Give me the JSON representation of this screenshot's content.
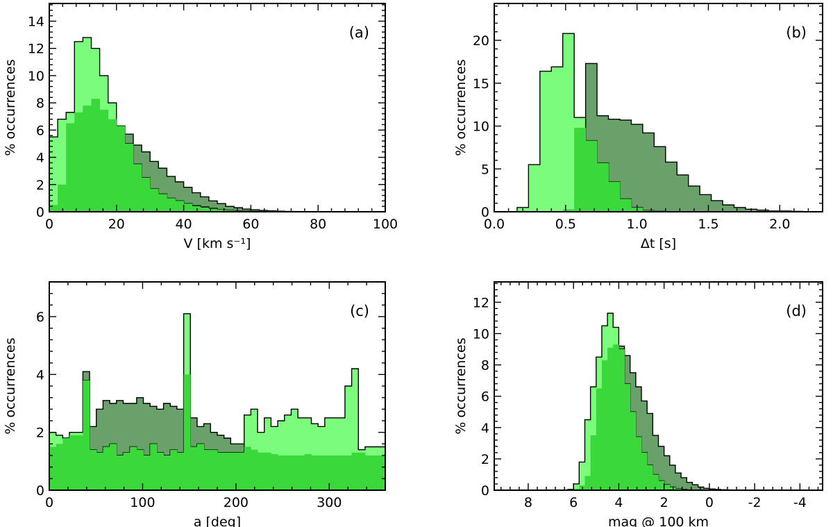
{
  "chart_data": [
    {
      "type": "histogram",
      "panel_label": "(a)",
      "xlabel": "V [km s⁻¹]",
      "ylabel": "% occurrences",
      "xlim": [
        0,
        100
      ],
      "ylim": [
        0,
        15.3
      ],
      "xticks": [
        0,
        20,
        40,
        60,
        80,
        100
      ],
      "yticks": [
        0,
        2,
        4,
        6,
        8,
        10,
        12,
        14
      ],
      "bin_start": 0,
      "bin_width": 2.5,
      "series": [
        {
          "name": "dark",
          "color": "#6aa06a",
          "values": [
            0.5,
            2,
            6.5,
            7.3,
            7.8,
            8.3,
            7.5,
            6.8,
            6.3,
            5.7,
            4.9,
            4.4,
            3.7,
            3.2,
            2.6,
            2.2,
            1.8,
            1.4,
            1.1,
            0.8,
            0.6,
            0.4,
            0.3,
            0.2,
            0.15,
            0.1,
            0.07,
            0.05,
            0.03,
            0.02,
            0.01,
            0.01,
            0,
            0,
            0,
            0,
            0,
            0,
            0,
            0
          ]
        },
        {
          "name": "light",
          "color": "#7cfc7c",
          "values": [
            5.5,
            6.8,
            7.3,
            12.5,
            12.8,
            12,
            10,
            8,
            6.3,
            5,
            3.5,
            2.5,
            1.7,
            1.3,
            1,
            0.8,
            0.6,
            0.45,
            0.35,
            0.25,
            0.15,
            0.1,
            0.07,
            0.05,
            0.03,
            0.02,
            0.01,
            0,
            0,
            0,
            0,
            0,
            0,
            0,
            0,
            0,
            0,
            0,
            0,
            0
          ]
        },
        {
          "name": "overlap",
          "color": "#3ad83a",
          "values": [
            0.5,
            2,
            6.5,
            7.3,
            7.8,
            8.3,
            7.5,
            6.8,
            6.3,
            5,
            3.5,
            2.5,
            1.7,
            1.3,
            1,
            0.8,
            0.6,
            0.4,
            0.3,
            0.2,
            0.15,
            0.1,
            0.07,
            0.05,
            0.03,
            0.02,
            0.01,
            0,
            0,
            0,
            0,
            0,
            0,
            0,
            0,
            0,
            0,
            0,
            0,
            0
          ]
        }
      ]
    },
    {
      "type": "histogram",
      "panel_label": "(b)",
      "xlabel": "Δt [s]",
      "ylabel": "% occurrences",
      "xlim": [
        0,
        2.3
      ],
      "ylim": [
        0,
        24.3
      ],
      "xticks": [
        0.0,
        0.5,
        1.0,
        1.5,
        2.0
      ],
      "xtick_labels": [
        "0.0",
        "0.5",
        "1.0",
        "1.5",
        "2.0"
      ],
      "yticks": [
        0,
        5,
        10,
        15,
        20
      ],
      "bin_start": 0,
      "bin_width": 0.08,
      "series": [
        {
          "name": "dark",
          "color": "#6aa06a",
          "values": [
            0,
            0,
            0,
            0,
            0,
            0,
            0.3,
            9.8,
            17.3,
            11.2,
            10.8,
            10.7,
            10.2,
            9.2,
            7.6,
            5.8,
            4.3,
            3,
            2,
            1.3,
            0.8,
            0.5,
            0.3,
            0.2,
            0.1,
            0.1,
            0.05,
            0,
            0
          ]
        },
        {
          "name": "light",
          "color": "#7cfc7c",
          "values": [
            0,
            0,
            0.5,
            5.5,
            16.4,
            16.9,
            20.8,
            11,
            8.3,
            5.7,
            3.5,
            1.5,
            0.5,
            0.15,
            0.05,
            0,
            0,
            0,
            0,
            0,
            0,
            0,
            0,
            0,
            0,
            0,
            0,
            0,
            0
          ]
        },
        {
          "name": "overlap",
          "color": "#3ad83a",
          "values": [
            0,
            0,
            0,
            0,
            0,
            0,
            0.3,
            9.8,
            8.3,
            5.7,
            3.5,
            1.5,
            0.5,
            0.15,
            0.05,
            0,
            0,
            0,
            0,
            0,
            0,
            0,
            0,
            0,
            0,
            0,
            0,
            0,
            0
          ]
        }
      ]
    },
    {
      "type": "histogram",
      "panel_label": "(c)",
      "xlabel": "a [deg]",
      "ylabel": "% occurrences",
      "xlim": [
        0,
        360
      ],
      "ylim": [
        0,
        7.2
      ],
      "xticks": [
        0,
        100,
        200,
        300
      ],
      "yticks": [
        0,
        2,
        4,
        6
      ],
      "bin_start": 0,
      "bin_width": 7.2,
      "series": [
        {
          "name": "dark",
          "color": "#6aa06a",
          "values": [
            1.5,
            1.6,
            1.8,
            1.9,
            1.9,
            4.1,
            2.2,
            2.8,
            3.1,
            3.0,
            3.1,
            3.0,
            3.0,
            3.2,
            3.0,
            2.9,
            2.8,
            3.0,
            2.9,
            2.8,
            4.0,
            2.5,
            2.2,
            2.3,
            2.0,
            1.9,
            1.8,
            1.6,
            1.6,
            1.5,
            1.4,
            1.3,
            1.3,
            1.25,
            1.2,
            1.2,
            1.2,
            1.2,
            1.25,
            1.2,
            1.2,
            1.2,
            1.2,
            1.2,
            1.2,
            1.3,
            1.3,
            1.2,
            1.2,
            1.2
          ]
        },
        {
          "name": "light",
          "color": "#7cfc7c",
          "values": [
            2.0,
            1.9,
            1.8,
            2.0,
            2.0,
            3.8,
            1.4,
            1.3,
            1.5,
            1.6,
            1.2,
            1.3,
            1.5,
            1.4,
            1.2,
            1.6,
            1.3,
            1.2,
            1.4,
            1.3,
            6.1,
            1.5,
            1.6,
            1.4,
            1.4,
            1.3,
            1.3,
            1.3,
            1.3,
            2.6,
            2.8,
            2.0,
            2.5,
            2.2,
            2.4,
            2.6,
            2.8,
            2.5,
            2.5,
            2.3,
            2.2,
            2.5,
            2.5,
            2.5,
            3.6,
            4.2,
            1.4,
            1.5,
            1.5,
            1.5
          ]
        },
        {
          "name": "overlap",
          "color": "#3ad83a",
          "values": [
            1.5,
            1.6,
            1.8,
            1.9,
            1.9,
            3.8,
            1.4,
            1.3,
            1.5,
            1.6,
            1.2,
            1.3,
            1.5,
            1.4,
            1.2,
            1.6,
            1.3,
            1.2,
            1.4,
            1.3,
            4.0,
            1.5,
            1.6,
            1.4,
            1.4,
            1.3,
            1.3,
            1.3,
            1.3,
            1.5,
            1.4,
            1.3,
            1.3,
            1.25,
            1.2,
            1.2,
            1.2,
            1.2,
            1.25,
            1.2,
            1.2,
            1.2,
            1.2,
            1.2,
            1.2,
            1.3,
            1.3,
            1.2,
            1.2,
            1.2
          ]
        }
      ]
    },
    {
      "type": "histogram",
      "panel_label": "(d)",
      "xlabel": "mag @ 100 km",
      "ylabel": "% occurrences",
      "xlim": [
        9.5,
        -5
      ],
      "ylim": [
        0,
        13.3
      ],
      "xticks": [
        8,
        6,
        4,
        2,
        0,
        -2,
        -4
      ],
      "xtick_labels": [
        "8",
        "6",
        "4",
        "2",
        "0",
        "-2",
        "-4"
      ],
      "yticks": [
        0,
        2,
        4,
        6,
        8,
        10,
        12
      ],
      "bin_start": 9.5,
      "bin_width": -0.25,
      "series": [
        {
          "name": "dark",
          "color": "#6aa06a",
          "values": [
            0,
            0,
            0,
            0,
            0,
            0,
            0,
            0,
            0,
            0,
            0,
            0,
            0,
            0,
            0.1,
            0.3,
            0.9,
            3.5,
            6.5,
            8.3,
            9.1,
            9.3,
            9.2,
            8.6,
            7.5,
            6.6,
            5.7,
            4.9,
            3.5,
            2.8,
            2.2,
            1.6,
            1.1,
            0.8,
            0.5,
            0.35,
            0.2,
            0.12,
            0.08,
            0.05,
            0.03,
            0.02,
            0.01,
            0,
            0,
            0,
            0,
            0,
            0,
            0,
            0,
            0,
            0,
            0,
            0,
            0,
            0,
            0
          ]
        },
        {
          "name": "light",
          "color": "#7cfc7c",
          "values": [
            0,
            0,
            0,
            0,
            0,
            0,
            0,
            0,
            0,
            0,
            0,
            0,
            0,
            0.05,
            0.4,
            1.8,
            4.5,
            6.6,
            8.5,
            10.5,
            11.3,
            10.4,
            9.0,
            6.8,
            5.0,
            3.4,
            2.4,
            1.6,
            1.0,
            0.6,
            0.35,
            0.2,
            0.1,
            0.05,
            0.02,
            0,
            0,
            0,
            0,
            0,
            0,
            0,
            0,
            0,
            0,
            0,
            0,
            0,
            0,
            0,
            0,
            0,
            0,
            0,
            0,
            0,
            0,
            0
          ]
        },
        {
          "name": "overlap",
          "color": "#3ad83a",
          "values": [
            0,
            0,
            0,
            0,
            0,
            0,
            0,
            0,
            0,
            0,
            0,
            0,
            0,
            0,
            0.1,
            0.3,
            0.9,
            3.5,
            6.5,
            8.3,
            9.1,
            9.3,
            9.0,
            6.8,
            5.0,
            3.4,
            2.4,
            1.6,
            1.0,
            0.6,
            0.35,
            0.2,
            0.1,
            0.05,
            0.02,
            0,
            0,
            0,
            0,
            0,
            0,
            0,
            0,
            0,
            0,
            0,
            0,
            0,
            0,
            0,
            0,
            0,
            0,
            0,
            0,
            0,
            0,
            0
          ]
        }
      ]
    }
  ]
}
